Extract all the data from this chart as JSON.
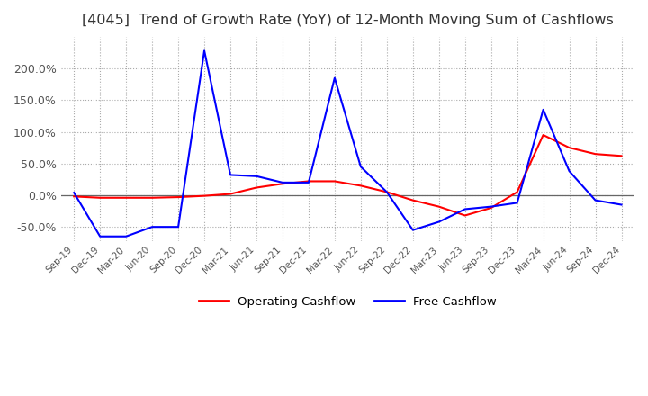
{
  "title": "[4045]  Trend of Growth Rate (YoY) of 12-Month Moving Sum of Cashflows",
  "title_fontsize": 11.5,
  "title_color": "#333333",
  "background_color": "#ffffff",
  "grid_color": "#aaaaaa",
  "legend_labels": [
    "Operating Cashflow",
    "Free Cashflow"
  ],
  "legend_colors": [
    "#ff0000",
    "#0000ff"
  ],
  "x_labels": [
    "Sep-19",
    "Dec-19",
    "Mar-20",
    "Jun-20",
    "Sep-20",
    "Dec-20",
    "Mar-21",
    "Jun-21",
    "Sep-21",
    "Dec-21",
    "Mar-22",
    "Jun-22",
    "Sep-22",
    "Dec-22",
    "Mar-23",
    "Jun-23",
    "Sep-23",
    "Dec-23",
    "Mar-24",
    "Jun-24",
    "Sep-24",
    "Dec-24"
  ],
  "operating_cashflow": [
    -0.02,
    -0.04,
    -0.04,
    -0.04,
    -0.03,
    -0.01,
    0.02,
    0.12,
    0.18,
    0.22,
    0.22,
    0.15,
    0.05,
    -0.08,
    -0.18,
    -0.32,
    -0.2,
    0.05,
    0.95,
    0.75,
    0.65,
    0.62
  ],
  "free_cashflow": [
    0.04,
    -0.65,
    -0.65,
    -0.5,
    -0.5,
    2.28,
    0.32,
    0.3,
    0.2,
    0.2,
    1.85,
    0.45,
    0.05,
    -0.55,
    -0.42,
    -0.22,
    -0.18,
    -0.12,
    1.35,
    0.38,
    -0.08,
    -0.15
  ],
  "ylim_min": -0.72,
  "ylim_max": 2.5,
  "yticks": [
    -0.5,
    0.0,
    0.5,
    1.0,
    1.5,
    2.0
  ]
}
